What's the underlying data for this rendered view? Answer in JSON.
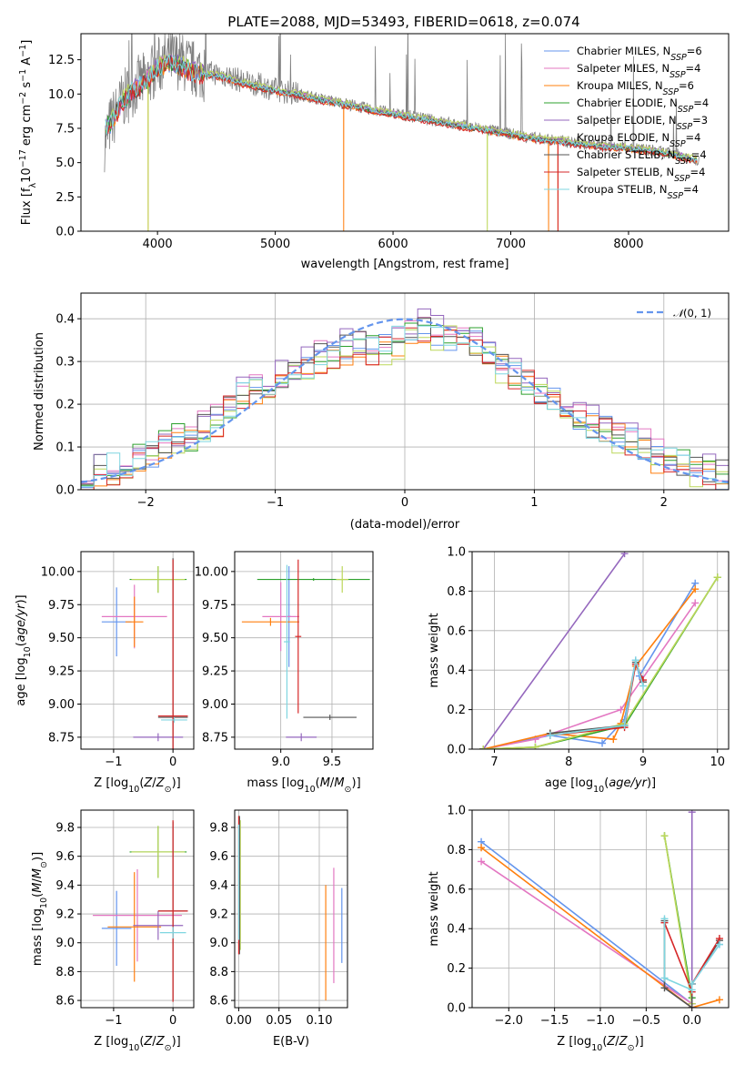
{
  "figure_title": "PLATE=2088, MJD=53493, FIBERID=0618, z=0.074",
  "series_colors": [
    "#6495ed",
    "#e377c2",
    "#ff7f0e",
    "#2ca02c",
    "#9467bd",
    "#bcd75a",
    "#555555",
    "#d62728",
    "#7fd6e0"
  ],
  "legend_entries": [
    {
      "label": "Chabrier MILES, N_SSP=6",
      "color": "#6495ed"
    },
    {
      "label": "Salpeter MILES, N_SSP=4",
      "color": "#e377c2"
    },
    {
      "label": "Kroupa MILES, N_SSP=6",
      "color": "#ff7f0e"
    },
    {
      "label": "Chabrier ELODIE, N_SSP=4",
      "color": "#2ca02c"
    },
    {
      "label": "Salpeter ELODIE, N_SSP=3",
      "color": "#9467bd"
    },
    {
      "label": "Kroupa ELODIE, N_SSP=4",
      "color": "#bcd75a"
    },
    {
      "label": "Chabrier STELIB, N_SSP=4",
      "color": "#555555"
    },
    {
      "label": "Salpeter STELIB, N_SSP=4",
      "color": "#d62728"
    },
    {
      "label": "Kroupa STELIB, N_SSP=4",
      "color": "#7fd6e0"
    }
  ],
  "chart_data": [
    {
      "type": "line",
      "id": "spectrum",
      "xlabel": "wavelength [Angstrom, rest frame]",
      "ylabel": "Flux [f_λ10^-17 erg cm^-2 s^-1 A^-1]",
      "xlim": [
        3350,
        8850
      ],
      "ylim": [
        0,
        14.4
      ],
      "xticks": [
        4000,
        5000,
        6000,
        7000,
        8000
      ],
      "yticks": [
        0.0,
        2.5,
        5.0,
        7.5,
        10.0,
        12.5
      ],
      "grid": false,
      "legend_position": "top-right",
      "data_series": {
        "name": "",
        "color": "#808080",
        "x": [
          3550,
          3600,
          3700,
          3800,
          3900,
          4000,
          4100,
          4200,
          4300,
          4400,
          4500,
          4600,
          4700,
          4800,
          4900,
          5000,
          5200,
          5400,
          5600,
          5800,
          6000,
          6200,
          6400,
          6600,
          6800,
          7000,
          7200,
          7400,
          7600,
          7800,
          8000,
          8200,
          8400,
          8600
        ],
        "y": [
          6.5,
          7.8,
          9.5,
          10.5,
          11.0,
          12.0,
          12.6,
          12.4,
          11.8,
          11.6,
          11.5,
          11.3,
          11.0,
          10.8,
          10.6,
          10.3,
          10.0,
          9.6,
          9.3,
          8.9,
          8.6,
          8.3,
          8.0,
          7.7,
          7.4,
          7.1,
          6.8,
          6.6,
          6.4,
          6.2,
          6.1,
          5.9,
          5.6,
          5.2
        ]
      },
      "model_x": [
        3550,
        3600,
        3700,
        3800,
        3900,
        4000,
        4100,
        4200,
        4300,
        4400,
        4500,
        4600,
        4700,
        4800,
        4900,
        5000,
        5200,
        5400,
        5600,
        5800,
        6000,
        6200,
        6400,
        6600,
        6800,
        7000,
        7200,
        7400,
        7600,
        7800,
        8000,
        8200,
        8400,
        8600
      ],
      "model_y": [
        7.5,
        7.8,
        9.4,
        10.3,
        10.9,
        11.9,
        12.2,
        12.0,
        11.6,
        11.4,
        11.3,
        11.1,
        10.8,
        10.6,
        10.4,
        10.2,
        9.9,
        9.5,
        9.2,
        8.8,
        8.5,
        8.2,
        7.9,
        7.6,
        7.3,
        7.0,
        6.7,
        6.5,
        6.3,
        6.1,
        6.0,
        5.8,
        5.5,
        5.1
      ],
      "model_offsets": [
        0.0,
        0.1,
        -0.05,
        0.05,
        0.15,
        0.2,
        0.0,
        -0.1,
        0.05
      ],
      "model_drops": [
        3920,
        5580,
        6800,
        7320,
        7400
      ]
    },
    {
      "type": "step",
      "id": "residuals",
      "xlabel": "(data-model)/error",
      "ylabel": "Normed distribution",
      "xlim": [
        -2.5,
        2.5
      ],
      "ylim": [
        0,
        0.46
      ],
      "xticks": [
        -2,
        -1,
        0,
        1,
        2
      ],
      "yticks": [
        0.0,
        0.1,
        0.2,
        0.3,
        0.4
      ],
      "grid": true,
      "legend_position": "top-right",
      "reference_curve": {
        "name": "N(0,1)",
        "color": "#6495ed",
        "mean": 0,
        "sigma": 1
      },
      "bin_edges": [
        -2.5,
        -2.4,
        -2.3,
        -2.2,
        -2.1,
        -2.0,
        -1.9,
        -1.8,
        -1.7,
        -1.6,
        -1.5,
        -1.4,
        -1.3,
        -1.2,
        -1.1,
        -1.0,
        -0.9,
        -0.8,
        -0.7,
        -0.6,
        -0.5,
        -0.4,
        -0.3,
        -0.2,
        -0.1,
        0.0,
        0.1,
        0.2,
        0.3,
        0.4,
        0.5,
        0.6,
        0.7,
        0.8,
        0.9,
        1.0,
        1.1,
        1.2,
        1.3,
        1.4,
        1.5,
        1.6,
        1.7,
        1.8,
        1.9,
        2.0,
        2.1,
        2.2,
        2.3,
        2.4,
        2.5
      ],
      "base_hist": [
        0.04,
        0.05,
        0.05,
        0.06,
        0.07,
        0.08,
        0.1,
        0.12,
        0.12,
        0.14,
        0.16,
        0.19,
        0.22,
        0.24,
        0.24,
        0.26,
        0.27,
        0.29,
        0.31,
        0.32,
        0.33,
        0.34,
        0.33,
        0.33,
        0.35,
        0.37,
        0.38,
        0.37,
        0.36,
        0.35,
        0.34,
        0.31,
        0.29,
        0.27,
        0.25,
        0.23,
        0.21,
        0.19,
        0.17,
        0.15,
        0.14,
        0.13,
        0.11,
        0.1,
        0.08,
        0.07,
        0.06,
        0.05,
        0.04,
        0.03
      ]
    },
    {
      "type": "errorbar",
      "id": "age_vs_Z",
      "xlabel": "Z [log10(Z/Z⊙)]",
      "ylabel": "age  [log10(age/yr)]",
      "xlim": [
        -1.55,
        0.35
      ],
      "ylim": [
        8.66,
        10.15
      ],
      "xticks": [
        -1,
        0
      ],
      "yticks": [
        8.75,
        9.0,
        9.25,
        9.5,
        9.75,
        10.0
      ],
      "grid": true,
      "points": [
        {
          "x": -0.95,
          "y": 9.62,
          "xerr": 0.25,
          "yerr": 0.26,
          "color": "#6495ed"
        },
        {
          "x": -0.65,
          "y": 9.66,
          "xerr": 0.55,
          "yerr": 0.24,
          "color": "#e377c2"
        },
        {
          "x": -0.65,
          "y": 9.62,
          "xerr": 0.15,
          "yerr": 0.19,
          "color": "#ff7f0e"
        },
        {
          "x": -0.25,
          "y": 9.94,
          "xerr": 0.48,
          "yerr": 0.1,
          "color": "#2ca02c"
        },
        {
          "x": -0.25,
          "y": 8.75,
          "xerr": 0.42,
          "yerr": 0.03,
          "color": "#9467bd"
        },
        {
          "x": -0.25,
          "y": 9.94,
          "xerr": 0.45,
          "yerr": 0.1,
          "color": "#bcd75a"
        },
        {
          "x": 0.0,
          "y": 8.9,
          "xerr": 0.25,
          "yerr": 1.2,
          "color": "#555555"
        },
        {
          "x": 0.0,
          "y": 8.91,
          "xerr": 0.25,
          "yerr": 1.18,
          "color": "#d62728"
        },
        {
          "x": 0.02,
          "y": 8.88,
          "xerr": 0.22,
          "yerr": 0.02,
          "color": "#7fd6e0"
        }
      ]
    },
    {
      "type": "errorbar",
      "id": "age_vs_mass",
      "xlabel": "mass [log10(M/M⊙)]",
      "ylabel": "",
      "xlim": [
        8.55,
        9.9
      ],
      "ylim": [
        8.66,
        10.15
      ],
      "xticks": [
        9.0,
        9.5
      ],
      "yticks": [
        8.75,
        9.0,
        9.25,
        9.5,
        9.75,
        10.0
      ],
      "grid": true,
      "points": [
        {
          "x": 9.08,
          "y": 9.66,
          "xerr": 0.02,
          "yerr": 0.38,
          "color": "#6495ed"
        },
        {
          "x": 9.0,
          "y": 9.66,
          "xerr": 0.18,
          "yerr": 0.26,
          "color": "#e377c2"
        },
        {
          "x": 8.9,
          "y": 9.62,
          "xerr": 0.28,
          "yerr": 0.03,
          "color": "#ff7f0e"
        },
        {
          "x": 9.32,
          "y": 9.94,
          "xerr": 0.55,
          "yerr": 0.01,
          "color": "#2ca02c"
        },
        {
          "x": 9.2,
          "y": 8.75,
          "xerr": 0.15,
          "yerr": 0.03,
          "color": "#9467bd"
        },
        {
          "x": 9.6,
          "y": 9.94,
          "xerr": 0.06,
          "yerr": 0.1,
          "color": "#bcd75a"
        },
        {
          "x": 9.48,
          "y": 8.9,
          "xerr": 0.26,
          "yerr": 0.02,
          "color": "#555555"
        },
        {
          "x": 9.17,
          "y": 9.51,
          "xerr": 0.03,
          "yerr": 0.58,
          "color": "#d62728"
        },
        {
          "x": 9.06,
          "y": 9.47,
          "xerr": 0.03,
          "yerr": 0.58,
          "color": "#7fd6e0"
        }
      ]
    },
    {
      "type": "line",
      "id": "massweight_vs_age",
      "xlabel": "age  [log10(age/yr)]",
      "ylabel": "mass weight",
      "xlim": [
        6.7,
        10.15
      ],
      "ylim": [
        0,
        1
      ],
      "xticks": [
        7,
        8,
        9,
        10
      ],
      "yticks": [
        0.0,
        0.2,
        0.4,
        0.6,
        0.8,
        1.0
      ],
      "grid": true,
      "series": [
        {
          "name": "",
          "color": "#6495ed",
          "x": [
            6.85,
            7.75,
            8.45,
            8.75,
            8.9,
            8.95,
            9.7
          ],
          "y": [
            0.0,
            0.07,
            0.03,
            0.15,
            0.45,
            0.37,
            0.84
          ]
        },
        {
          "name": "",
          "color": "#e377c2",
          "x": [
            6.85,
            7.55,
            8.7,
            9.7
          ],
          "y": [
            0.0,
            0.05,
            0.2,
            0.74
          ]
        },
        {
          "name": "",
          "color": "#ff7f0e",
          "x": [
            6.85,
            7.75,
            8.6,
            8.7,
            8.9,
            9.7
          ],
          "y": [
            0.0,
            0.08,
            0.05,
            0.13,
            0.42,
            0.81
          ]
        },
        {
          "name": "",
          "color": "#2ca02c",
          "x": [
            6.85,
            7.55,
            8.75,
            10.0
          ],
          "y": [
            0.0,
            0.01,
            0.12,
            0.87
          ]
        },
        {
          "name": "",
          "color": "#9467bd",
          "x": [
            6.85,
            8.75
          ],
          "y": [
            0.0,
            0.99
          ]
        },
        {
          "name": "",
          "color": "#bcd75a",
          "x": [
            6.85,
            7.55,
            8.75,
            10.0
          ],
          "y": [
            0.0,
            0.01,
            0.13,
            0.87
          ]
        },
        {
          "name": "",
          "color": "#555555",
          "x": [
            7.75,
            8.75,
            8.9,
            9.0
          ],
          "y": [
            0.08,
            0.12,
            0.44,
            0.34
          ]
        },
        {
          "name": "",
          "color": "#d62728",
          "x": [
            7.75,
            8.75,
            8.9,
            9.0
          ],
          "y": [
            0.07,
            0.11,
            0.43,
            0.35
          ]
        },
        {
          "name": "",
          "color": "#7fd6e0",
          "x": [
            7.75,
            8.75,
            8.9,
            9.0
          ],
          "y": [
            0.07,
            0.12,
            0.45,
            0.32
          ]
        }
      ]
    },
    {
      "type": "errorbar",
      "id": "mass_vs_Z",
      "xlabel": "Z [log10(Z/Z⊙)]",
      "ylabel": "mass [log10(M/M⊙)]",
      "xlim": [
        -1.55,
        0.35
      ],
      "ylim": [
        8.55,
        9.92
      ],
      "xticks": [
        -1,
        0
      ],
      "yticks": [
        8.6,
        8.8,
        9.0,
        9.2,
        9.4,
        9.6,
        9.8
      ],
      "grid": true,
      "points": [
        {
          "x": -0.95,
          "y": 9.1,
          "xerr": 0.25,
          "yerr": 0.26,
          "color": "#6495ed"
        },
        {
          "x": -0.6,
          "y": 9.19,
          "xerr": 0.75,
          "yerr": 0.32,
          "color": "#e377c2"
        },
        {
          "x": -0.65,
          "y": 9.11,
          "xerr": 0.45,
          "yerr": 0.38,
          "color": "#ff7f0e"
        },
        {
          "x": -0.25,
          "y": 9.63,
          "xerr": 0.48,
          "yerr": 0.18,
          "color": "#2ca02c"
        },
        {
          "x": -0.25,
          "y": 9.12,
          "xerr": 0.42,
          "yerr": 0.1,
          "color": "#9467bd"
        },
        {
          "x": -0.25,
          "y": 9.63,
          "xerr": 0.45,
          "yerr": 0.18,
          "color": "#bcd75a"
        },
        {
          "x": 0.0,
          "y": 9.22,
          "xerr": 0.25,
          "yerr": 0.62,
          "color": "#555555"
        },
        {
          "x": 0.0,
          "y": 9.22,
          "xerr": 0.25,
          "yerr": 0.63,
          "color": "#d62728"
        },
        {
          "x": 0.0,
          "y": 9.07,
          "xerr": 0.22,
          "yerr": 0.04,
          "color": "#7fd6e0"
        }
      ]
    },
    {
      "type": "errorbar",
      "id": "mass_vs_ebv",
      "xlabel": "E(B-V)",
      "ylabel": "",
      "xlim": [
        -0.005,
        0.135
      ],
      "ylim": [
        8.55,
        9.92
      ],
      "xticks": [
        0.0,
        0.05,
        0.1
      ],
      "yticks": [
        8.6,
        8.8,
        9.0,
        9.2,
        9.4,
        9.6,
        9.8
      ],
      "grid": true,
      "points": [
        {
          "x": 0.128,
          "y": 9.12,
          "xerr": 0,
          "yerr": 0.26,
          "color": "#6495ed"
        },
        {
          "x": 0.118,
          "y": 9.12,
          "xerr": 0,
          "yerr": 0.4,
          "color": "#e377c2"
        },
        {
          "x": 0.108,
          "y": 9.0,
          "xerr": 0,
          "yerr": 0.4,
          "color": "#ff7f0e"
        },
        {
          "x": 0.001,
          "y": 9.45,
          "xerr": 0,
          "yerr": 0.42,
          "color": "#2ca02c"
        },
        {
          "x": 0.001,
          "y": 9.45,
          "xerr": 0,
          "yerr": 0.4,
          "color": "#9467bd"
        },
        {
          "x": 0.002,
          "y": 9.4,
          "xerr": 0,
          "yerr": 0.45,
          "color": "#bcd75a"
        },
        {
          "x": 0.001,
          "y": 9.4,
          "xerr": 0,
          "yerr": 0.48,
          "color": "#555555"
        },
        {
          "x": 0.0,
          "y": 9.4,
          "xerr": 0,
          "yerr": 0.48,
          "color": "#d62728"
        },
        {
          "x": 0.0,
          "y": 9.42,
          "xerr": 0,
          "yerr": 0.4,
          "color": "#7fd6e0"
        }
      ]
    },
    {
      "type": "line",
      "id": "massweight_vs_Z",
      "xlabel": "Z [log10(Z/Z⊙)]",
      "ylabel": "mass weight",
      "xlim": [
        -2.4,
        0.4
      ],
      "ylim": [
        0,
        1
      ],
      "xticks": [
        -2.0,
        -1.5,
        -1.0,
        -0.5,
        0.0
      ],
      "yticks": [
        0.0,
        0.2,
        0.4,
        0.6,
        0.8,
        1.0
      ],
      "grid": true,
      "series": [
        {
          "name": "",
          "color": "#6495ed",
          "x": [
            -2.3,
            0.0,
            0.0,
            0.3
          ],
          "y": [
            0.84,
            0.02,
            0.12,
            0.32
          ]
        },
        {
          "name": "",
          "color": "#e377c2",
          "x": [
            -2.3,
            0.0
          ],
          "y": [
            0.74,
            0.02
          ]
        },
        {
          "name": "",
          "color": "#ff7f0e",
          "x": [
            -2.3,
            0.0,
            0.3
          ],
          "y": [
            0.81,
            0.0,
            0.04
          ]
        },
        {
          "name": "",
          "color": "#2ca02c",
          "x": [
            -0.3,
            0.0
          ],
          "y": [
            0.87,
            0.05
          ]
        },
        {
          "name": "",
          "color": "#9467bd",
          "x": [
            0.0,
            0.0
          ],
          "y": [
            0.99,
            0.0
          ]
        },
        {
          "name": "",
          "color": "#bcd75a",
          "x": [
            -0.3,
            0.0
          ],
          "y": [
            0.87,
            0.02
          ]
        },
        {
          "name": "",
          "color": "#555555",
          "x": [
            -0.3,
            -0.3,
            0.0,
            0.0,
            0.3
          ],
          "y": [
            0.44,
            0.1,
            0.0,
            0.12,
            0.34
          ]
        },
        {
          "name": "",
          "color": "#d62728",
          "x": [
            -0.3,
            0.0,
            0.0,
            0.3
          ],
          "y": [
            0.43,
            0.08,
            0.12,
            0.35
          ]
        },
        {
          "name": "",
          "color": "#7fd6e0",
          "x": [
            -0.3,
            -0.3,
            0.0,
            0.0,
            0.3
          ],
          "y": [
            0.45,
            0.15,
            0.09,
            0.12,
            0.32
          ]
        }
      ]
    }
  ]
}
